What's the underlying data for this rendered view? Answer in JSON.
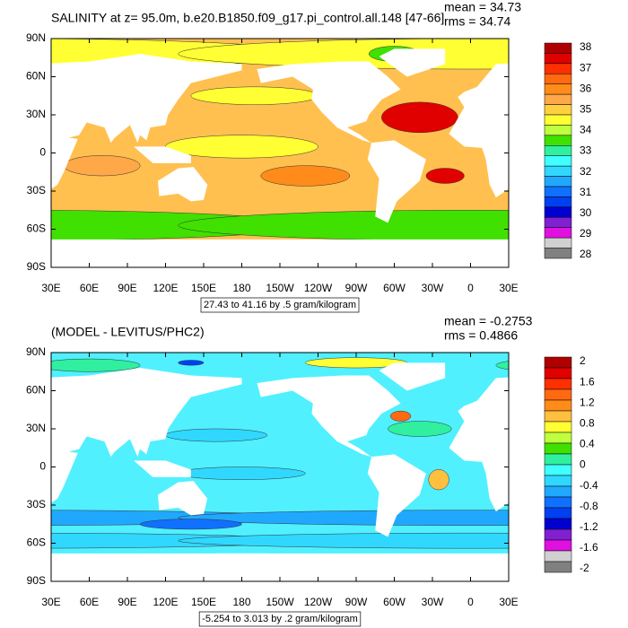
{
  "panels": [
    {
      "title": "SALINITY at z=  95.0m, b.e20.B1850.f09_g17.pi_control.all.148 [47-66]",
      "mean": "mean = 34.73",
      "rms": "rms = 34.74",
      "lat_labels": [
        "90N",
        "60N",
        "30N",
        "0",
        "30S",
        "60S",
        "90S"
      ],
      "lon_labels": [
        "30E",
        "60E",
        "90E",
        "120E",
        "150E",
        "180",
        "150W",
        "120W",
        "90W",
        "60W",
        "30W",
        "0",
        "30E"
      ],
      "contour_info": "27.43 to 41.16 by .5 gram/kilogram",
      "ocean_color": "#ffc050",
      "colorbar": {
        "labels": [
          "38",
          "37",
          "36",
          "35",
          "34",
          "33",
          "32",
          "31",
          "30",
          "29",
          "28"
        ],
        "colors": [
          "#b00000",
          "#e00000",
          "#ff3000",
          "#ff6a10",
          "#ff8c1a",
          "#ffa848",
          "#ffd040",
          "#ffff33",
          "#c0ff40",
          "#40e000",
          "#30f0a0",
          "#40ffff",
          "#30d8ff",
          "#20a8ff",
          "#1070ff",
          "#0040f0",
          "#0000d0",
          "#8020d0",
          "#e010e0",
          "#d0d0d0",
          "#808080"
        ]
      }
    },
    {
      "title": "(MODEL - LEVITUS/PHC2)",
      "mean": "mean = -0.2753",
      "rms": "rms = 0.4866",
      "lat_labels": [
        "90N",
        "60N",
        "30N",
        "0",
        "30S",
        "60S",
        "90S"
      ],
      "lon_labels": [
        "30E",
        "60E",
        "90E",
        "120E",
        "150E",
        "180",
        "150W",
        "120W",
        "90W",
        "60W",
        "30W",
        "0",
        "30E"
      ],
      "contour_info": "-5.254 to 3.013 by .2 gram/kilogram",
      "ocean_color": "#50f0ff",
      "colorbar": {
        "labels": [
          "2",
          "1.6",
          "1.2",
          "0.8",
          "0.4",
          "0",
          "-0.4",
          "-0.8",
          "-1.2",
          "-1.6",
          "-2"
        ],
        "colors": [
          "#b00000",
          "#e00000",
          "#ff3000",
          "#ff6a10",
          "#ff8c1a",
          "#ffc040",
          "#ffff33",
          "#c0ff40",
          "#40e000",
          "#30f0a0",
          "#40ffff",
          "#30d8ff",
          "#20a8ff",
          "#1070ff",
          "#0040f0",
          "#0000d0",
          "#8020d0",
          "#e010e0",
          "#d0d0d0",
          "#808080"
        ]
      }
    }
  ]
}
